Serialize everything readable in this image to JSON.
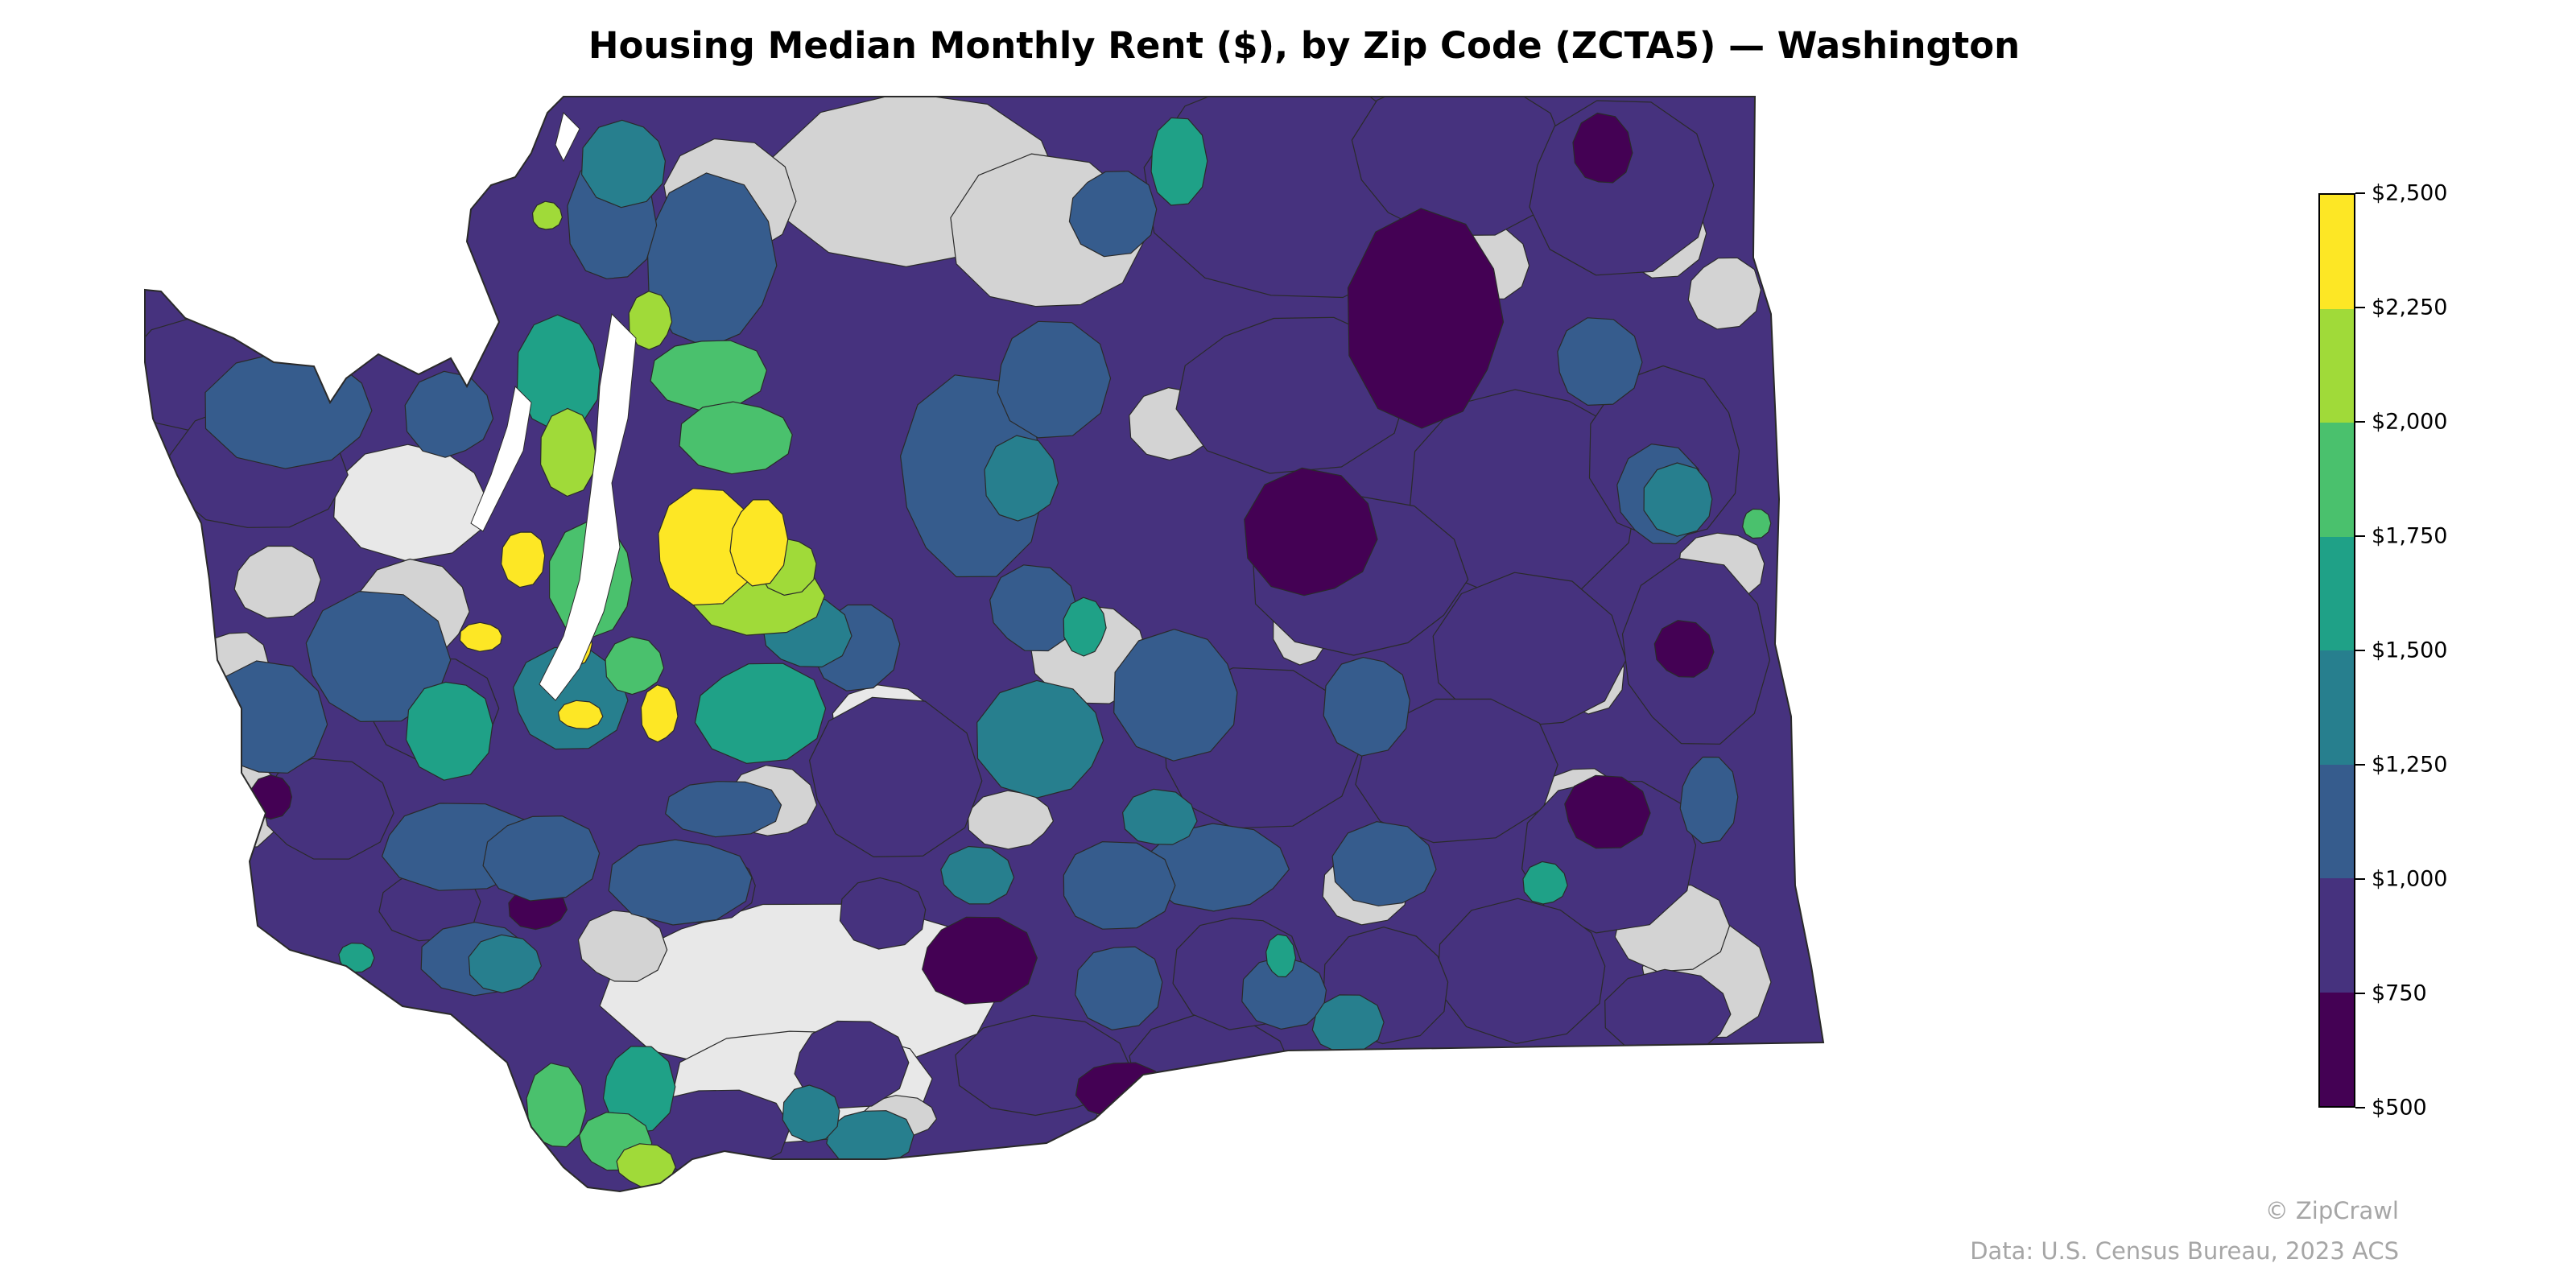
{
  "map": {
    "title": "Housing Median Monthly Rent ($), by Zip Code (ZCTA5) — Washington",
    "region": "Washington",
    "metric": "Housing Median Monthly Rent ($)",
    "unit": "ZCTA5",
    "no_data_color": "#d3d3d3",
    "outside_color": "#e8e8e8",
    "water_color": "#ffffff"
  },
  "legend": {
    "placement": "right",
    "min": 500,
    "max": 2500,
    "tick_labels": [
      "$500",
      "$750",
      "$1,000",
      "$1,250",
      "$1,500",
      "$1,750",
      "$2,000",
      "$2,250",
      "$2,500"
    ],
    "bins": [
      {
        "range": "$500–$750",
        "color": "#440154"
      },
      {
        "range": "$750–$1,000",
        "color": "#46327e"
      },
      {
        "range": "$1,000–$1,250",
        "color": "#365c8d"
      },
      {
        "range": "$1,250–$1,500",
        "color": "#277f8e"
      },
      {
        "range": "$1,500–$1,750",
        "color": "#1fa187"
      },
      {
        "range": "$1,750–$2,000",
        "color": "#4ac16d"
      },
      {
        "range": "$2,000–$2,250",
        "color": "#a0da39"
      },
      {
        "range": "$2,250–$2,500",
        "color": "#fde725"
      }
    ]
  },
  "footer": {
    "credit": "© ZipCrawl",
    "source": "Data: U.S. Census Bureau, 2023 ACS"
  }
}
